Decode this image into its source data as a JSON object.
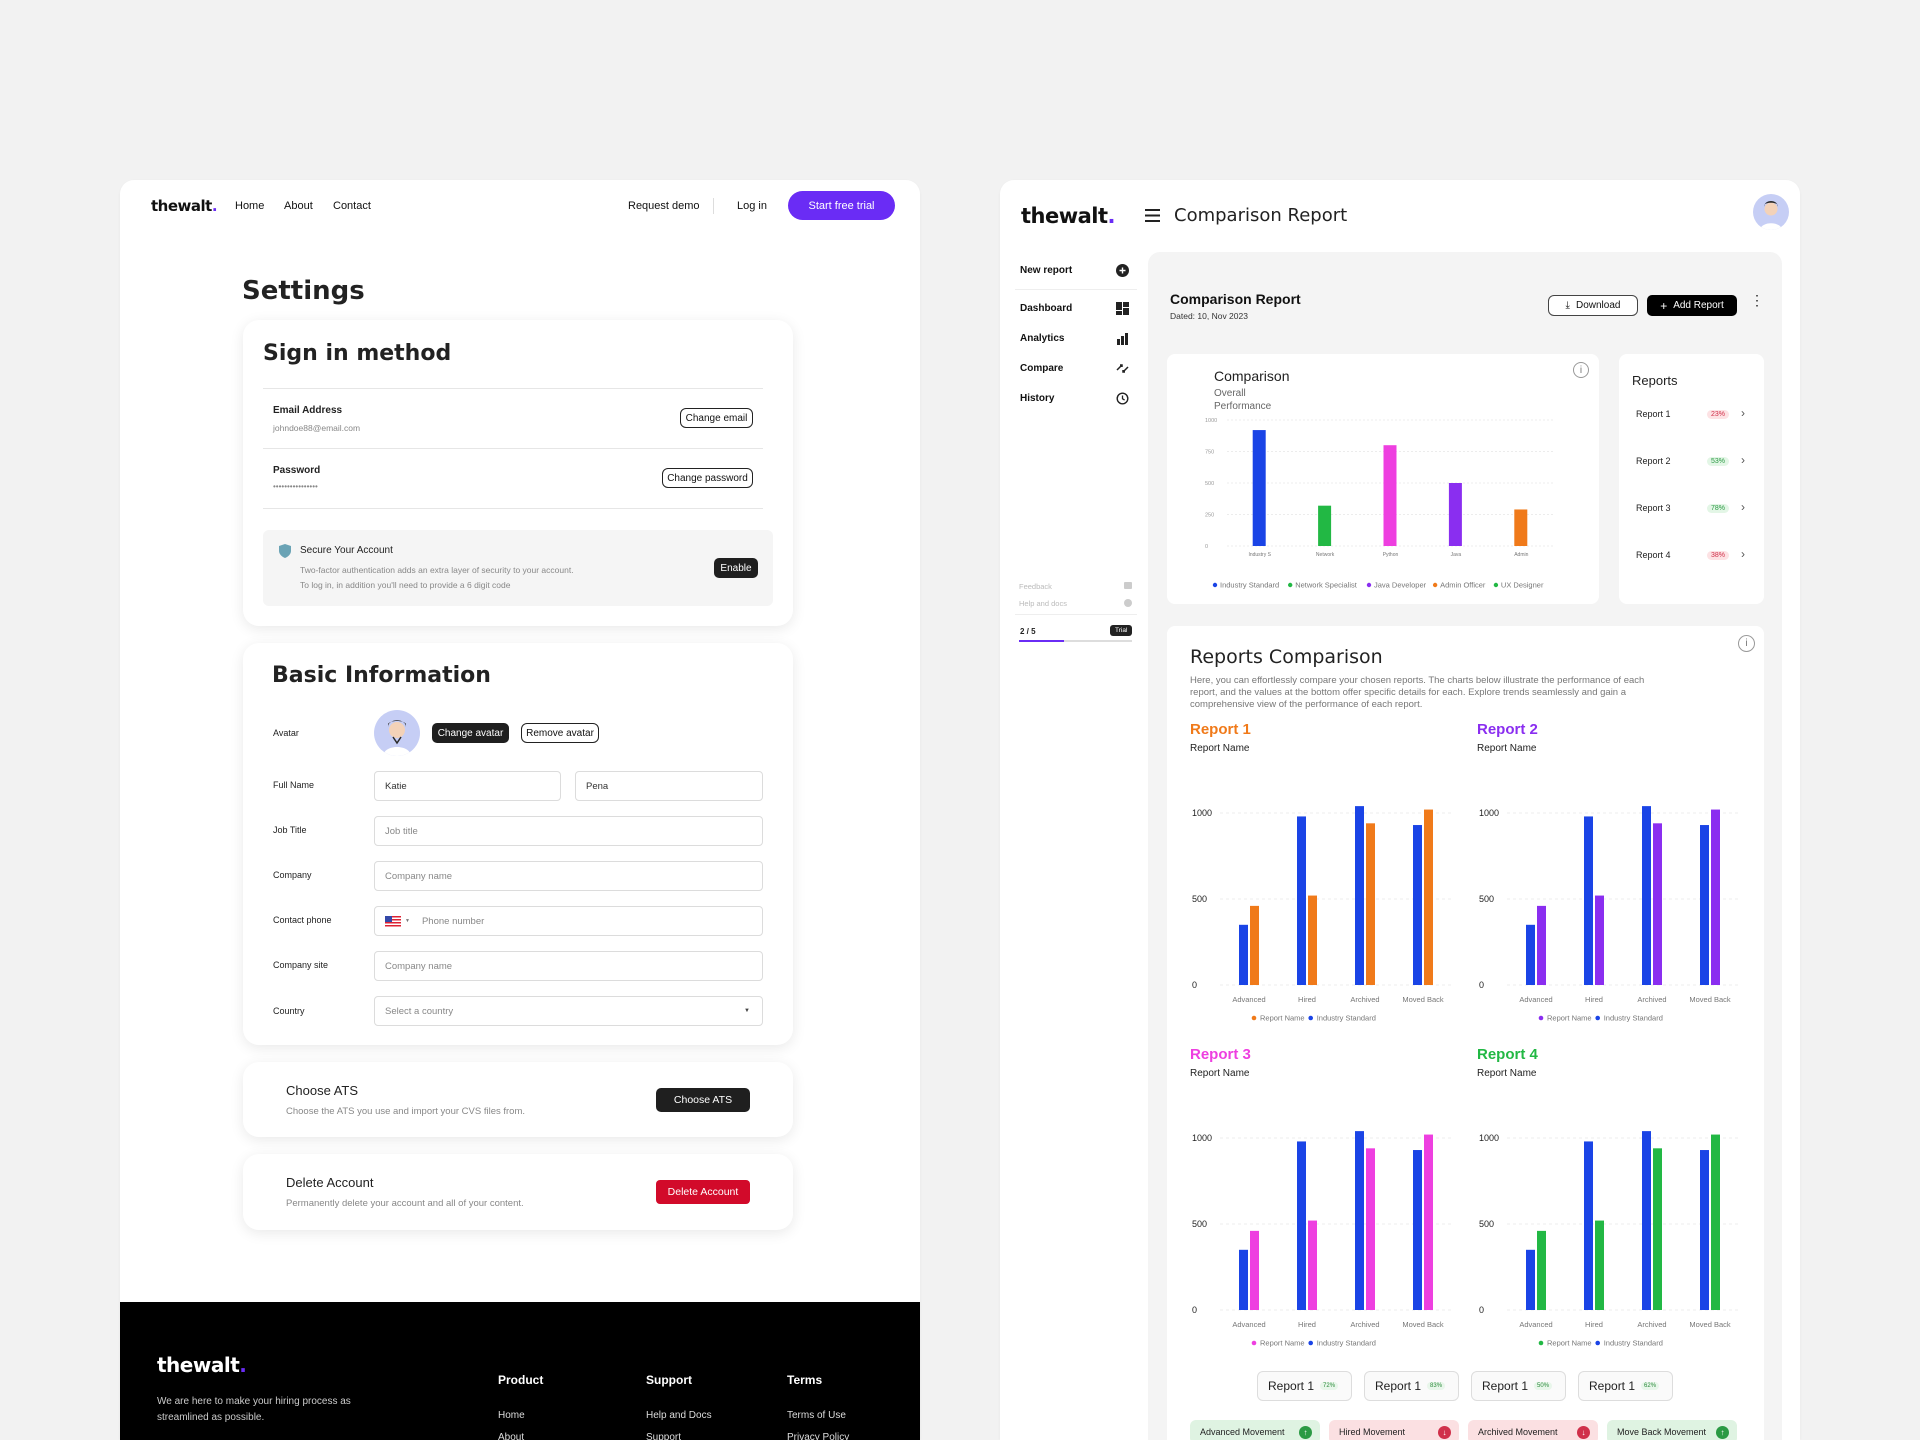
{
  "left": {
    "logo": "thewalt",
    "logo_dot": ".",
    "nav": [
      "Home",
      "About",
      "Contact"
    ],
    "request_demo": "Request demo",
    "login": "Log in",
    "start_trial": "Start free trial",
    "page_title": "Settings",
    "signin": {
      "title": "Sign in method",
      "email_label": "Email Address",
      "email_value": "johndoe88@email.com",
      "change_email": "Change email",
      "password_label": "Password",
      "password_value": "••••••••••••••••",
      "change_password": "Change password",
      "secure_title": "Secure Your Account",
      "secure_line1": "Two-factor authentication adds an extra layer of security to your account.",
      "secure_line2": "To log in, in addition you'll need to provide a 6 digit code",
      "enable": "Enable"
    },
    "basic": {
      "title": "Basic Information",
      "avatar_label": "Avatar",
      "change_avatar": "Change avatar",
      "remove_avatar": "Remove avatar",
      "fullname_label": "Full Name",
      "first_name": "Katie",
      "last_name": "Pena",
      "job_label": "Job Title",
      "job_placeholder": "Job title",
      "company_label": "Company",
      "company_placeholder": "Company name",
      "phone_label": "Contact phone",
      "phone_placeholder": "Phone number",
      "site_label": "Company site",
      "site_placeholder": "Company name",
      "country_label": "Country",
      "country_placeholder": "Select a country"
    },
    "ats": {
      "title": "Choose ATS",
      "desc": "Choose the ATS you use and import your CVS files from.",
      "button": "Choose ATS"
    },
    "delete": {
      "title": "Delete Account",
      "desc": "Permanently delete your account and all of your content.",
      "button": "Delete Account"
    },
    "footer": {
      "tagline1": "We are here to make your hiring process as",
      "tagline2": "streamlined as possible.",
      "product": "Product",
      "support": "Support",
      "terms": "Terms",
      "home": "Home",
      "about": "About",
      "help": "Help and Docs",
      "support_link": "Support",
      "terms_of_use": "Terms of Use",
      "privacy": "Privacy Policy"
    }
  },
  "right": {
    "logo": "thewalt",
    "logo_dot": ".",
    "page_title": "Comparison Report",
    "sidebar": {
      "new_report": "New report",
      "items": [
        "Dashboard",
        "Analytics",
        "Compare",
        "History"
      ],
      "feedback": "Feedback",
      "help": "Help and docs",
      "progress": "2 / 5",
      "progress_value": 0.4,
      "trial": "Trial"
    },
    "header": {
      "title": "Comparison Report",
      "date": "Dated: 10, Nov 2023",
      "download": "Download",
      "add_report": "Add Report"
    },
    "comparison": {
      "title": "Comparison",
      "subtitle1": "Overall",
      "subtitle2": "Performance"
    },
    "reports_panel": {
      "title": "Reports",
      "items": [
        {
          "name": "Report 1",
          "pct": "23%",
          "bg": "#fde2e4",
          "fg": "#d0304a"
        },
        {
          "name": "Report 2",
          "pct": "53%",
          "bg": "#e3f6e6",
          "fg": "#2b9a44"
        },
        {
          "name": "Report 3",
          "pct": "78%",
          "bg": "#e3f6e6",
          "fg": "#2b9a44"
        },
        {
          "name": "Report 4",
          "pct": "38%",
          "bg": "#fde2e4",
          "fg": "#d0304a"
        }
      ]
    },
    "reports_comparison": {
      "title": "Reports Comparison",
      "desc1": "Here, you can effortlessly compare your chosen reports. The charts below illustrate the performance of each",
      "desc2": "report, and the values at the bottom offer specific details for each. Explore trends seamlessly and gain a",
      "desc3": "comprehensive view of the performance of each report.",
      "report_name": "Report Name"
    },
    "chips": [
      {
        "label": "Report 1",
        "pct": "72%"
      },
      {
        "label": "Report 1",
        "pct": "83%"
      },
      {
        "label": "Report 1",
        "pct": "50%"
      },
      {
        "label": "Report 1",
        "pct": "62%"
      }
    ],
    "movements": [
      {
        "label": "Advanced Movement",
        "bg": "#dff3e2",
        "dot": "#2b9a44",
        "sign": "↑"
      },
      {
        "label": "Hired Movement",
        "bg": "#fbe0e2",
        "dot": "#d0304a",
        "sign": "↓"
      },
      {
        "label": "Archived Movement",
        "bg": "#fbe0e2",
        "dot": "#d0304a",
        "sign": "↓"
      },
      {
        "label": "Move Back Movement",
        "bg": "#dff3e2",
        "dot": "#2b9a44",
        "sign": "↑"
      }
    ]
  },
  "chart_data": [
    {
      "type": "bar",
      "title": "Comparison",
      "subtitle": "Overall Performance",
      "categories": [
        "Industry S",
        "Network",
        "Python",
        "Java",
        "Admin"
      ],
      "values": [
        920,
        320,
        800,
        500,
        290
      ],
      "colors": [
        "#1a44e6",
        "#22b844",
        "#ee3fe0",
        "#8a2ef0",
        "#f07a1a"
      ],
      "yticks": [
        0,
        250,
        500,
        750,
        1000
      ],
      "ylim": [
        0,
        1000
      ],
      "legend": [
        "Industry Standard",
        "Network Specialist",
        "Java Developer",
        "Admin Officer",
        "UX Designer"
      ],
      "legend_colors": [
        "#1a44e6",
        "#22b844",
        "#8a2ef0",
        "#f07a1a",
        "#22b844"
      ],
      "legend_position": "bottom"
    },
    {
      "type": "bar",
      "title": "Report 1",
      "title_color": "#f07a1a",
      "categories": [
        "Advanced",
        "Hired",
        "Archived",
        "Moved Back"
      ],
      "yticks": [
        0,
        500,
        1000
      ],
      "ylim": [
        0,
        1000
      ],
      "series": [
        {
          "name": "Industry Standard",
          "color": "#1a44e6",
          "values": [
            350,
            980,
            1040,
            930
          ]
        },
        {
          "name": "Report Name",
          "color": "#f07a1a",
          "values": [
            460,
            520,
            940,
            1020
          ]
        }
      ],
      "legend": [
        "Report Name",
        "Industry Standard"
      ],
      "legend_colors": [
        "#f07a1a",
        "#1a44e6"
      ],
      "legend_position": "bottom"
    },
    {
      "type": "bar",
      "title": "Report 2",
      "title_color": "#8a2ef0",
      "categories": [
        "Advanced",
        "Hired",
        "Archived",
        "Moved Back"
      ],
      "yticks": [
        0,
        500,
        1000
      ],
      "ylim": [
        0,
        1000
      ],
      "series": [
        {
          "name": "Industry Standard",
          "color": "#1a44e6",
          "values": [
            350,
            980,
            1040,
            930
          ]
        },
        {
          "name": "Report Name",
          "color": "#8a2ef0",
          "values": [
            460,
            520,
            940,
            1020
          ]
        }
      ],
      "legend": [
        "Report Name",
        "Industry Standard"
      ],
      "legend_colors": [
        "#8a2ef0",
        "#1a44e6"
      ],
      "legend_position": "bottom"
    },
    {
      "type": "bar",
      "title": "Report 3",
      "title_color": "#ee3fe0",
      "categories": [
        "Advanced",
        "Hired",
        "Archived",
        "Moved Back"
      ],
      "yticks": [
        0,
        500,
        1000
      ],
      "ylim": [
        0,
        1000
      ],
      "series": [
        {
          "name": "Industry Standard",
          "color": "#1a44e6",
          "values": [
            350,
            980,
            1040,
            930
          ]
        },
        {
          "name": "Report Name",
          "color": "#ee3fe0",
          "values": [
            460,
            520,
            940,
            1020
          ]
        }
      ],
      "legend": [
        "Report Name",
        "Industry Standard"
      ],
      "legend_colors": [
        "#ee3fe0",
        "#1a44e6"
      ],
      "legend_position": "bottom"
    },
    {
      "type": "bar",
      "title": "Report 4",
      "title_color": "#22b844",
      "categories": [
        "Advanced",
        "Hired",
        "Archived",
        "Moved Back"
      ],
      "yticks": [
        0,
        500,
        1000
      ],
      "ylim": [
        0,
        1000
      ],
      "series": [
        {
          "name": "Industry Standard",
          "color": "#1a44e6",
          "values": [
            350,
            980,
            1040,
            930
          ]
        },
        {
          "name": "Report Name",
          "color": "#22b844",
          "values": [
            460,
            520,
            940,
            1020
          ]
        }
      ],
      "legend": [
        "Report Name",
        "Industry Standard"
      ],
      "legend_colors": [
        "#22b844",
        "#1a44e6"
      ],
      "legend_position": "bottom"
    }
  ]
}
